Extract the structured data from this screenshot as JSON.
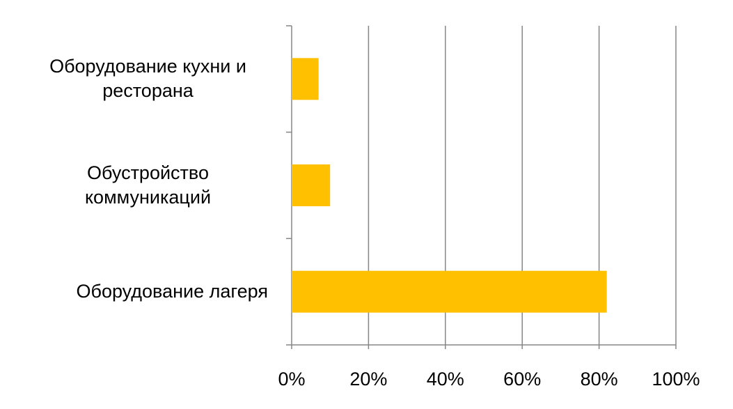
{
  "chart_data": {
    "type": "bar",
    "orientation": "horizontal",
    "categories": [
      "Оборудование кухни и ресторана",
      "Обустройство коммуникаций",
      "Оборудование лагеря"
    ],
    "values": [
      7,
      10,
      82
    ],
    "color": "#ffc000",
    "xlim": [
      0,
      100
    ],
    "xticks": [
      {
        "value": 0,
        "label": "0%"
      },
      {
        "value": 20,
        "label": "20%"
      },
      {
        "value": 40,
        "label": "40%"
      },
      {
        "value": 60,
        "label": "60%"
      },
      {
        "value": 80,
        "label": "80%"
      },
      {
        "value": 100,
        "label": "100%"
      }
    ],
    "grid": true
  }
}
